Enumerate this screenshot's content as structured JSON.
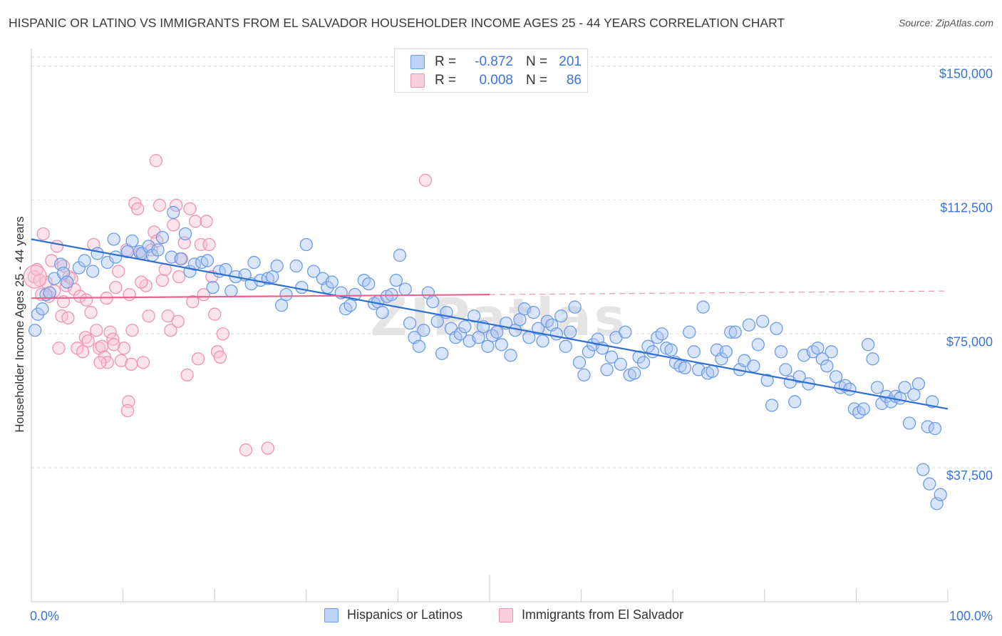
{
  "title": "HISPANIC OR LATINO VS IMMIGRANTS FROM EL SALVADOR HOUSEHOLDER INCOME AGES 25 - 44 YEARS CORRELATION CHART",
  "source": "Source: ZipAtlas.com",
  "watermark": "ZIPatlas",
  "legend_top": {
    "rows": [
      {
        "r_label": "R =",
        "r_value": "-0.872",
        "n_label": "N =",
        "n_value": "201"
      },
      {
        "r_label": "R =",
        "r_value": "0.008",
        "n_label": "N =",
        "n_value": "86"
      }
    ]
  },
  "legend_bottom": [
    "Hispanics or Latinos",
    "Immigrants from El Salvador"
  ],
  "colors": {
    "blue": "#6d9be6",
    "blue_fill": "#aac6f3",
    "blue_line": "#2f6fd0",
    "pink": "#ee93b0",
    "pink_fill": "#f7c3d4",
    "pink_line": "#e8648e",
    "axis_text": "#3a74d6",
    "grid": "#dddddd"
  },
  "chart_data": {
    "type": "scatter",
    "title": "HISPANIC OR LATINO VS IMMIGRANTS FROM EL SALVADOR HOUSEHOLDER INCOME AGES 25 - 44 YEARS CORRELATION CHART",
    "xlabel": "",
    "ylabel": "Householder Income Ages 25 - 44 years",
    "xlim": [
      0,
      100
    ],
    "ylim": [
      0,
      152500
    ],
    "x_tick_labels": [
      "0.0%",
      "100.0%"
    ],
    "y_ticks": [
      37500,
      75000,
      112500,
      150000
    ],
    "y_tick_labels": [
      "$37,500",
      "$75,000",
      "$112,500",
      "$150,000"
    ],
    "grid": "horizontal dashed",
    "legend_position": "top-center",
    "series": [
      {
        "name": "Hispanics or Latinos",
        "r": -0.872,
        "n": 201,
        "trend": {
          "x": [
            0,
            100
          ],
          "y": [
            101500,
            54000
          ]
        },
        "points": [
          [
            0.4,
            76000
          ],
          [
            0.7,
            80500
          ],
          [
            1.2,
            82000
          ],
          [
            1.6,
            86000
          ],
          [
            2.0,
            86500
          ],
          [
            2.5,
            90500
          ],
          [
            3.2,
            94500
          ],
          [
            3.5,
            92000
          ],
          [
            3.9,
            89500
          ],
          [
            5.2,
            93500
          ],
          [
            5.8,
            95500
          ],
          [
            6.7,
            92500
          ],
          [
            7.2,
            97500
          ],
          [
            8.3,
            95000
          ],
          [
            9.0,
            101500
          ],
          [
            9.2,
            96500
          ],
          [
            10.5,
            98000
          ],
          [
            11.0,
            101000
          ],
          [
            11.8,
            98000
          ],
          [
            12.1,
            97500
          ],
          [
            12.8,
            99500
          ],
          [
            13.2,
            97000
          ],
          [
            13.8,
            98500
          ],
          [
            14.3,
            102000
          ],
          [
            15.3,
            96500
          ],
          [
            15.5,
            109000
          ],
          [
            16.3,
            96000
          ],
          [
            16.8,
            103000
          ],
          [
            17.3,
            92500
          ],
          [
            17.8,
            94500
          ],
          [
            18.6,
            95000
          ],
          [
            19.2,
            95500
          ],
          [
            19.8,
            88000
          ],
          [
            20.5,
            92500
          ],
          [
            21.2,
            93000
          ],
          [
            21.8,
            87000
          ],
          [
            22.3,
            91000
          ],
          [
            23.3,
            91500
          ],
          [
            24.0,
            89000
          ],
          [
            24.3,
            95000
          ],
          [
            25.0,
            90000
          ],
          [
            25.8,
            90500
          ],
          [
            26.3,
            91000
          ],
          [
            26.8,
            94000
          ],
          [
            27.3,
            83000
          ],
          [
            27.8,
            86000
          ],
          [
            28.9,
            94000
          ],
          [
            29.5,
            88000
          ],
          [
            30.0,
            100000
          ],
          [
            30.8,
            92500
          ],
          [
            31.8,
            90500
          ],
          [
            32.3,
            88000
          ],
          [
            32.8,
            89500
          ],
          [
            33.8,
            86500
          ],
          [
            34.3,
            82000
          ],
          [
            34.8,
            83000
          ],
          [
            35.3,
            86000
          ],
          [
            36.3,
            90000
          ],
          [
            36.8,
            89000
          ],
          [
            37.4,
            83500
          ],
          [
            37.8,
            84000
          ],
          [
            38.3,
            81000
          ],
          [
            38.8,
            85500
          ],
          [
            39.3,
            86000
          ],
          [
            39.8,
            90000
          ],
          [
            40.2,
            97000
          ],
          [
            40.8,
            87500
          ],
          [
            41.3,
            78000
          ],
          [
            41.8,
            74000
          ],
          [
            42.3,
            71500
          ],
          [
            42.8,
            76000
          ],
          [
            43.3,
            86500
          ],
          [
            43.8,
            84000
          ],
          [
            44.3,
            78500
          ],
          [
            44.8,
            69500
          ],
          [
            45.3,
            81000
          ],
          [
            45.8,
            76500
          ],
          [
            46.3,
            74000
          ],
          [
            46.8,
            75000
          ],
          [
            47.3,
            77000
          ],
          [
            47.8,
            73000
          ],
          [
            48.3,
            80000
          ],
          [
            48.8,
            74000
          ],
          [
            49.3,
            77000
          ],
          [
            49.8,
            71500
          ],
          [
            50.3,
            74500
          ],
          [
            50.8,
            75500
          ],
          [
            51.3,
            72000
          ],
          [
            51.8,
            78000
          ],
          [
            52.3,
            69000
          ],
          [
            52.8,
            76000
          ],
          [
            53.3,
            79000
          ],
          [
            53.8,
            82000
          ],
          [
            54.3,
            74000
          ],
          [
            54.8,
            81000
          ],
          [
            55.3,
            76500
          ],
          [
            55.8,
            73000
          ],
          [
            56.3,
            78500
          ],
          [
            56.8,
            77500
          ],
          [
            57.3,
            75000
          ],
          [
            57.8,
            80000
          ],
          [
            58.3,
            71500
          ],
          [
            58.8,
            75500
          ],
          [
            59.3,
            82500
          ],
          [
            59.8,
            67000
          ],
          [
            60.3,
            63500
          ],
          [
            60.8,
            70000
          ],
          [
            61.3,
            72000
          ],
          [
            61.8,
            73500
          ],
          [
            62.3,
            71000
          ],
          [
            62.8,
            65000
          ],
          [
            63.3,
            68500
          ],
          [
            63.8,
            74000
          ],
          [
            64.3,
            66500
          ],
          [
            64.8,
            75500
          ],
          [
            65.3,
            63500
          ],
          [
            65.8,
            64000
          ],
          [
            66.3,
            68500
          ],
          [
            66.8,
            67000
          ],
          [
            67.3,
            71500
          ],
          [
            67.8,
            70000
          ],
          [
            68.3,
            74000
          ],
          [
            68.8,
            75000
          ],
          [
            69.3,
            71000
          ],
          [
            69.8,
            70500
          ],
          [
            70.3,
            67000
          ],
          [
            70.8,
            66000
          ],
          [
            71.3,
            65500
          ],
          [
            71.8,
            75500
          ],
          [
            72.3,
            70000
          ],
          [
            72.8,
            65000
          ],
          [
            73.3,
            82500
          ],
          [
            73.8,
            64000
          ],
          [
            74.3,
            64500
          ],
          [
            74.8,
            70500
          ],
          [
            75.3,
            68000
          ],
          [
            75.8,
            70000
          ],
          [
            76.3,
            75500
          ],
          [
            76.8,
            75500
          ],
          [
            77.3,
            65000
          ],
          [
            77.8,
            67500
          ],
          [
            78.3,
            77500
          ],
          [
            78.8,
            66000
          ],
          [
            79.3,
            72000
          ],
          [
            79.8,
            78500
          ],
          [
            80.3,
            62000
          ],
          [
            80.8,
            55000
          ],
          [
            81.3,
            76500
          ],
          [
            81.8,
            70000
          ],
          [
            82.3,
            65000
          ],
          [
            82.8,
            61500
          ],
          [
            83.3,
            56000
          ],
          [
            83.8,
            63000
          ],
          [
            84.3,
            69000
          ],
          [
            84.8,
            61000
          ],
          [
            85.3,
            70000
          ],
          [
            85.8,
            71000
          ],
          [
            86.3,
            68000
          ],
          [
            86.8,
            66000
          ],
          [
            87.3,
            70000
          ],
          [
            87.8,
            63000
          ],
          [
            88.3,
            60000
          ],
          [
            88.8,
            60500
          ],
          [
            89.3,
            59500
          ],
          [
            89.8,
            54000
          ],
          [
            90.3,
            53000
          ],
          [
            90.8,
            54000
          ],
          [
            91.3,
            72000
          ],
          [
            91.8,
            68000
          ],
          [
            92.3,
            60000
          ],
          [
            92.8,
            55500
          ],
          [
            93.3,
            57500
          ],
          [
            93.8,
            56000
          ],
          [
            94.3,
            57500
          ],
          [
            94.8,
            57000
          ],
          [
            95.3,
            60000
          ],
          [
            95.8,
            50000
          ],
          [
            96.3,
            58000
          ],
          [
            96.8,
            61000
          ],
          [
            97.3,
            37000
          ],
          [
            97.8,
            49000
          ],
          [
            98.0,
            33000
          ],
          [
            98.3,
            56000
          ],
          [
            98.6,
            48500
          ],
          [
            98.8,
            27500
          ],
          [
            99.2,
            30000
          ]
        ]
      },
      {
        "name": "Immigrants from El Salvador",
        "r": 0.008,
        "n": 86,
        "trend": {
          "x": [
            0,
            50
          ],
          "y": [
            85000,
            86000
          ]
        },
        "trend_dashed": {
          "x": [
            50,
            100
          ],
          "y": [
            86000,
            87000
          ]
        },
        "points": [
          [
            0.3,
            91000
          ],
          [
            0.6,
            93000
          ],
          [
            0.9,
            90000
          ],
          [
            1.1,
            86000
          ],
          [
            1.3,
            103000
          ],
          [
            1.6,
            89500
          ],
          [
            1.9,
            85500
          ],
          [
            2.2,
            95500
          ],
          [
            2.5,
            87000
          ],
          [
            2.8,
            99500
          ],
          [
            3.0,
            71000
          ],
          [
            3.3,
            80000
          ],
          [
            3.5,
            84000
          ],
          [
            3.8,
            88500
          ],
          [
            4.1,
            91000
          ],
          [
            4.4,
            90500
          ],
          [
            4.7,
            87500
          ],
          [
            5.0,
            71000
          ],
          [
            5.3,
            85500
          ],
          [
            5.6,
            70000
          ],
          [
            5.9,
            74000
          ],
          [
            6.2,
            73000
          ],
          [
            6.5,
            81000
          ],
          [
            6.8,
            100000
          ],
          [
            7.1,
            76000
          ],
          [
            7.4,
            71000
          ],
          [
            7.7,
            71500
          ],
          [
            8.0,
            68500
          ],
          [
            8.3,
            67000
          ],
          [
            8.6,
            75500
          ],
          [
            8.9,
            73500
          ],
          [
            9.2,
            88000
          ],
          [
            9.5,
            92500
          ],
          [
            9.8,
            67500
          ],
          [
            10.1,
            71000
          ],
          [
            10.4,
            98500
          ],
          [
            10.7,
            86000
          ],
          [
            11.0,
            76000
          ],
          [
            11.3,
            111500
          ],
          [
            11.6,
            110000
          ],
          [
            11.9,
            97500
          ],
          [
            12.2,
            67000
          ],
          [
            12.5,
            88500
          ],
          [
            12.8,
            80000
          ],
          [
            13.1,
            98500
          ],
          [
            13.4,
            103500
          ],
          [
            13.7,
            101000
          ],
          [
            14.0,
            111000
          ],
          [
            14.3,
            90000
          ],
          [
            14.6,
            93000
          ],
          [
            14.9,
            80000
          ],
          [
            15.2,
            76000
          ],
          [
            15.5,
            105500
          ],
          [
            15.8,
            111000
          ],
          [
            16.1,
            91000
          ],
          [
            16.4,
            96000
          ],
          [
            16.7,
            100500
          ],
          [
            17.0,
            63500
          ],
          [
            17.3,
            110000
          ],
          [
            17.6,
            84000
          ],
          [
            17.9,
            106500
          ],
          [
            18.2,
            68000
          ],
          [
            18.5,
            100000
          ],
          [
            18.8,
            86000
          ],
          [
            19.1,
            106500
          ],
          [
            19.4,
            100000
          ],
          [
            19.7,
            91000
          ],
          [
            20.0,
            80500
          ],
          [
            20.3,
            70000
          ],
          [
            20.6,
            68500
          ],
          [
            20.9,
            75000
          ],
          [
            13.6,
            123500
          ],
          [
            43.0,
            118000
          ],
          [
            23.4,
            42500
          ],
          [
            25.8,
            43000
          ],
          [
            10.6,
            56000
          ],
          [
            10.5,
            53500
          ],
          [
            10.9,
            66500
          ],
          [
            6.0,
            84500
          ],
          [
            7.5,
            67000
          ],
          [
            12.0,
            89500
          ],
          [
            4.0,
            79500
          ],
          [
            8.2,
            85000
          ],
          [
            9.0,
            72000
          ],
          [
            16.0,
            78500
          ],
          [
            3.5,
            94000
          ]
        ]
      }
    ]
  }
}
